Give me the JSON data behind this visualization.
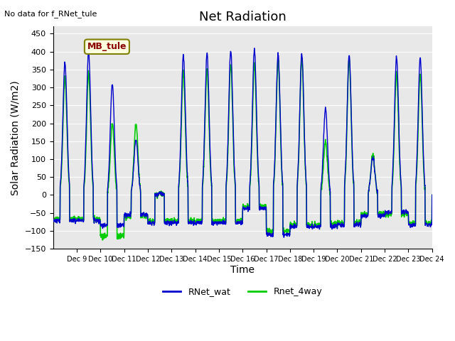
{
  "title": "Net Radiation",
  "xlabel": "Time",
  "ylabel": "Solar Radiation (W/m2)",
  "note": "No data for f_RNet_tule",
  "legend_box_label": "MB_tule",
  "ylim": [
    -150,
    470
  ],
  "yticks": [
    -150,
    -100,
    -50,
    0,
    50,
    100,
    150,
    200,
    250,
    300,
    350,
    400,
    450
  ],
  "xlim_start": 8,
  "xlim_end": 24,
  "xtick_positions": [
    9,
    10,
    11,
    12,
    13,
    14,
    15,
    16,
    17,
    18,
    19,
    20,
    21,
    22,
    23,
    24
  ],
  "xtick_labels": [
    "Dec 9",
    "Dec 10",
    "Dec 11",
    "Dec 12",
    "Dec 13",
    "Dec 14",
    "Dec 15",
    "Dec 16",
    "Dec 17",
    "Dec 18",
    "Dec 19",
    "Dec 20",
    "Dec 21",
    "Dec 22",
    "Dec 23",
    "Dec 24"
  ],
  "color_blue": "#0000CC",
  "color_green": "#00CC00",
  "bg_color": "#E8E8E8",
  "legend_label_blue": "RNet_wat",
  "legend_label_green": "Rnet_4way",
  "title_fontsize": 13,
  "axis_label_fontsize": 10
}
